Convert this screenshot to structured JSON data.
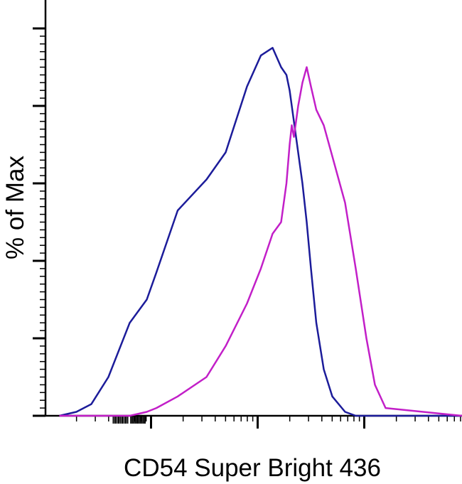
{
  "chart_data": {
    "type": "line",
    "title": "",
    "xlabel": "CD54 Super Bright 436",
    "ylabel": "% of Max",
    "x_scale": "log",
    "xlim_decades": [
      1.0,
      5.6
    ],
    "ylim": [
      0,
      100
    ],
    "grid": false,
    "legend": "none",
    "x": [
      1.14,
      1.3,
      1.44,
      1.6,
      1.8,
      1.96,
      2.05,
      2.25,
      2.52,
      2.7,
      2.9,
      3.03,
      3.14,
      3.22,
      3.27,
      3.3,
      3.32,
      3.34,
      3.38,
      3.42,
      3.46,
      3.5,
      3.55,
      3.62,
      3.7,
      3.82,
      3.92,
      4.02,
      4.1,
      4.2,
      5.6
    ],
    "series": [
      {
        "color": "#1c1c9a",
        "values": [
          0,
          1,
          3,
          10,
          24,
          30,
          37,
          53,
          61,
          68,
          85,
          93,
          95,
          90,
          88,
          84,
          80,
          76,
          68,
          60,
          50,
          38,
          24,
          12,
          5,
          1,
          0,
          0,
          0,
          0,
          0
        ]
      },
      {
        "color": "#c21fc8",
        "values": [
          0,
          0,
          0,
          0,
          0,
          1,
          2,
          5,
          10,
          18,
          29,
          38,
          47,
          50,
          60,
          70,
          75,
          72,
          80,
          86,
          90,
          85,
          79,
          75,
          67,
          55,
          38,
          20,
          8,
          2,
          0
        ]
      }
    ]
  }
}
